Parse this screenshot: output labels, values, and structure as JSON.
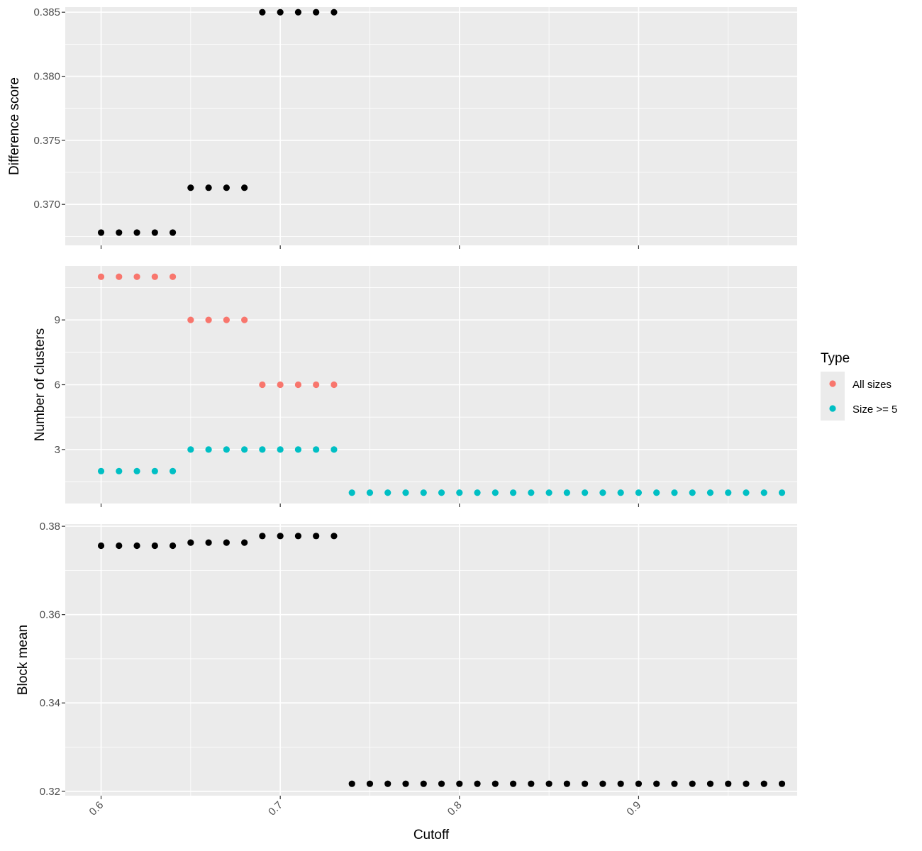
{
  "chart_data": {
    "type": "scatter",
    "xlabel": "Cutoff",
    "x_ticks": [
      "0.6",
      "0.7",
      "0.8",
      "0.9"
    ],
    "x_tick_values": [
      0.6,
      0.7,
      0.8,
      0.9
    ],
    "xlim": [
      0.58,
      0.9885
    ],
    "grid": true,
    "legend": {
      "title": "Type",
      "position": "right",
      "entries": [
        {
          "label": "All sizes",
          "color": "#F8766D"
        },
        {
          "label": "Size >= 5",
          "color": "#00BFC4"
        }
      ]
    },
    "panels": [
      {
        "ylabel": "Difference score",
        "ylim": [
          0.3668,
          0.3854
        ],
        "y_ticks": [
          "0.370",
          "0.375",
          "0.380",
          "0.385"
        ],
        "y_tick_values": [
          0.37,
          0.375,
          0.38,
          0.385
        ],
        "series": [
          {
            "color": "#000000",
            "points": [
              [
                0.6,
                0.3678
              ],
              [
                0.61,
                0.3678
              ],
              [
                0.62,
                0.3678
              ],
              [
                0.63,
                0.3678
              ],
              [
                0.64,
                0.3678
              ],
              [
                0.65,
                0.3713
              ],
              [
                0.66,
                0.3713
              ],
              [
                0.67,
                0.3713
              ],
              [
                0.68,
                0.3713
              ],
              [
                0.69,
                0.385
              ],
              [
                0.7,
                0.385
              ],
              [
                0.71,
                0.385
              ],
              [
                0.72,
                0.385
              ],
              [
                0.73,
                0.385
              ]
            ]
          }
        ]
      },
      {
        "ylabel": "Number of clusters",
        "ylim": [
          0.5,
          11.5
        ],
        "y_ticks": [
          "3",
          "6",
          "9"
        ],
        "y_tick_values": [
          3,
          6,
          9
        ],
        "series": [
          {
            "name": "All sizes",
            "color": "#F8766D",
            "points": [
              [
                0.6,
                11
              ],
              [
                0.61,
                11
              ],
              [
                0.62,
                11
              ],
              [
                0.63,
                11
              ],
              [
                0.64,
                11
              ],
              [
                0.65,
                9
              ],
              [
                0.66,
                9
              ],
              [
                0.67,
                9
              ],
              [
                0.68,
                9
              ],
              [
                0.69,
                6
              ],
              [
                0.7,
                6
              ],
              [
                0.71,
                6
              ],
              [
                0.72,
                6
              ],
              [
                0.73,
                6
              ]
            ]
          },
          {
            "name": "Size >= 5",
            "color": "#00BFC4",
            "points": [
              [
                0.6,
                2
              ],
              [
                0.61,
                2
              ],
              [
                0.62,
                2
              ],
              [
                0.63,
                2
              ],
              [
                0.64,
                2
              ],
              [
                0.65,
                3
              ],
              [
                0.66,
                3
              ],
              [
                0.67,
                3
              ],
              [
                0.68,
                3
              ],
              [
                0.69,
                3
              ],
              [
                0.7,
                3
              ],
              [
                0.71,
                3
              ],
              [
                0.72,
                3
              ],
              [
                0.73,
                3
              ],
              [
                0.74,
                1
              ],
              [
                0.75,
                1
              ],
              [
                0.76,
                1
              ],
              [
                0.77,
                1
              ],
              [
                0.78,
                1
              ],
              [
                0.79,
                1
              ],
              [
                0.8,
                1
              ],
              [
                0.81,
                1
              ],
              [
                0.82,
                1
              ],
              [
                0.83,
                1
              ],
              [
                0.84,
                1
              ],
              [
                0.85,
                1
              ],
              [
                0.86,
                1
              ],
              [
                0.87,
                1
              ],
              [
                0.88,
                1
              ],
              [
                0.89,
                1
              ],
              [
                0.9,
                1
              ],
              [
                0.91,
                1
              ],
              [
                0.92,
                1
              ],
              [
                0.93,
                1
              ],
              [
                0.94,
                1
              ],
              [
                0.95,
                1
              ],
              [
                0.96,
                1
              ],
              [
                0.97,
                1
              ],
              [
                0.98,
                1
              ]
            ]
          }
        ]
      },
      {
        "ylabel": "Block mean",
        "ylim": [
          0.319,
          0.3805
        ],
        "y_ticks": [
          "0.32",
          "0.34",
          "0.36",
          "0.38"
        ],
        "y_tick_values": [
          0.32,
          0.34,
          0.36,
          0.38
        ],
        "series": [
          {
            "color": "#000000",
            "points": [
              [
                0.6,
                0.3756
              ],
              [
                0.61,
                0.3756
              ],
              [
                0.62,
                0.3756
              ],
              [
                0.63,
                0.3756
              ],
              [
                0.64,
                0.3756
              ],
              [
                0.65,
                0.3763
              ],
              [
                0.66,
                0.3763
              ],
              [
                0.67,
                0.3763
              ],
              [
                0.68,
                0.3763
              ],
              [
                0.69,
                0.3778
              ],
              [
                0.7,
                0.3778
              ],
              [
                0.71,
                0.3778
              ],
              [
                0.72,
                0.3778
              ],
              [
                0.73,
                0.3778
              ],
              [
                0.74,
                0.3217
              ],
              [
                0.75,
                0.3217
              ],
              [
                0.76,
                0.3217
              ],
              [
                0.77,
                0.3217
              ],
              [
                0.78,
                0.3217
              ],
              [
                0.79,
                0.3217
              ],
              [
                0.8,
                0.3217
              ],
              [
                0.81,
                0.3217
              ],
              [
                0.82,
                0.3217
              ],
              [
                0.83,
                0.3217
              ],
              [
                0.84,
                0.3217
              ],
              [
                0.85,
                0.3217
              ],
              [
                0.86,
                0.3217
              ],
              [
                0.87,
                0.3217
              ],
              [
                0.88,
                0.3217
              ],
              [
                0.89,
                0.3217
              ],
              [
                0.9,
                0.3217
              ],
              [
                0.91,
                0.3217
              ],
              [
                0.92,
                0.3217
              ],
              [
                0.93,
                0.3217
              ],
              [
                0.94,
                0.3217
              ],
              [
                0.95,
                0.3217
              ],
              [
                0.96,
                0.3217
              ],
              [
                0.97,
                0.3217
              ],
              [
                0.98,
                0.3217
              ]
            ]
          }
        ]
      }
    ]
  }
}
